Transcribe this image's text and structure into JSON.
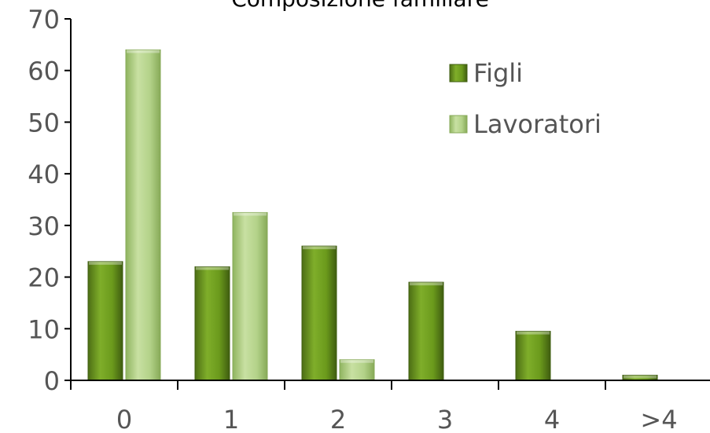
{
  "chart_data": {
    "type": "bar",
    "title": "Composizione familiare",
    "categories": [
      "0",
      "1",
      "2",
      "3",
      "4",
      ">4"
    ],
    "series": [
      {
        "name": "Figli",
        "values": [
          23,
          22,
          26,
          19,
          9.5,
          1
        ],
        "color": "#6f9a1f"
      },
      {
        "name": "Lavoratori",
        "values": [
          64,
          32.5,
          4,
          0,
          0,
          0
        ],
        "color": "#b4d28a"
      }
    ],
    "ylim": [
      0,
      70
    ],
    "yticks": [
      "0",
      "10",
      "20",
      "30",
      "40",
      "50",
      "60",
      "70"
    ],
    "xlabel": "",
    "ylabel": "",
    "grid": false,
    "legend": "top-right"
  }
}
